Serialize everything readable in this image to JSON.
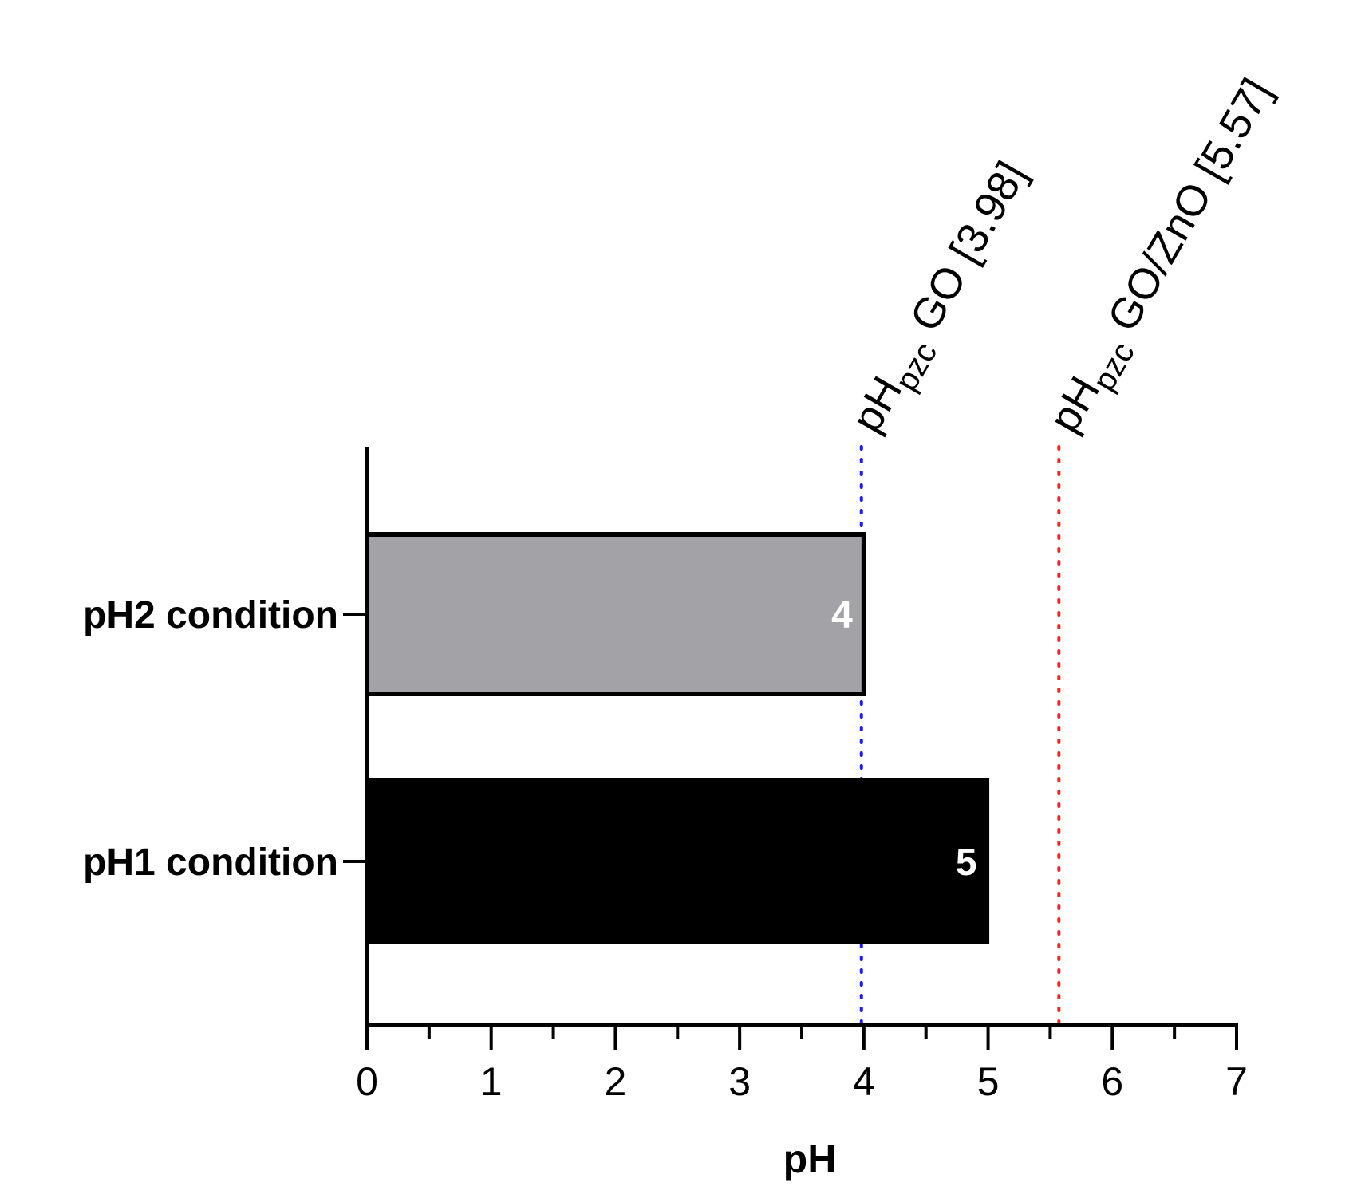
{
  "chart_data": {
    "type": "bar",
    "orientation": "horizontal",
    "categories": [
      "pH2 condition",
      "pH1 condition"
    ],
    "values": [
      4,
      5
    ],
    "value_labels": [
      "4",
      "5"
    ],
    "bar_colors": [
      "#a3a3a7",
      "#000000"
    ],
    "xlabel": "pH",
    "xlim": [
      0,
      7
    ],
    "xticks": [
      "0",
      "1",
      "2",
      "3",
      "4",
      "5",
      "6",
      "7"
    ],
    "grid": false,
    "reference_lines": [
      {
        "x": 3.98,
        "color": "#1a1aff",
        "style": "dotted",
        "label_main": "pH",
        "label_sub": "pzc",
        "label_rest": " GO [3.98]"
      },
      {
        "x": 5.57,
        "color": "#ff2020",
        "style": "dotted",
        "label_main": "pH",
        "label_sub": "pzc",
        "label_rest": " GO/ZnO [5.57]"
      }
    ]
  }
}
